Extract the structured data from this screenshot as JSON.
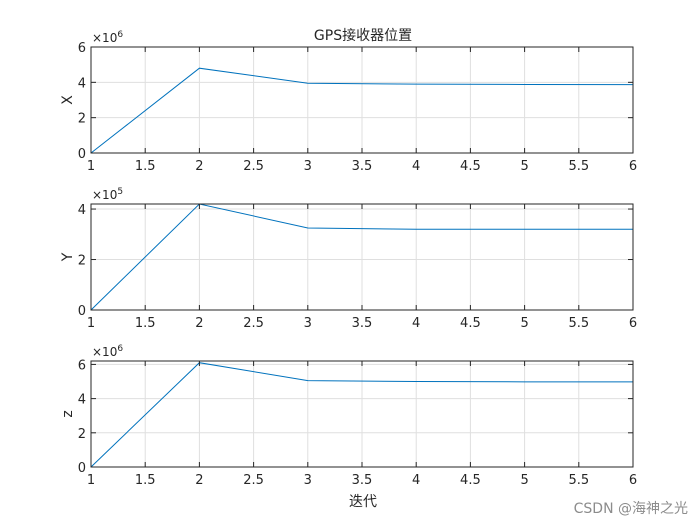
{
  "figure": {
    "title": "GPS接收器位置",
    "xlabel": "迭代",
    "watermark": "CSDN @海神之光"
  },
  "chart_data": [
    {
      "type": "line",
      "title": "GPS接收器位置",
      "xlabel": "",
      "ylabel": "X",
      "multiplier": "×10^6",
      "x": [
        1,
        2,
        3,
        4,
        5,
        6
      ],
      "series": [
        {
          "values": [
            0,
            4.8,
            3.95,
            3.9,
            3.88,
            3.87
          ],
          "color": "#0072BD"
        }
      ],
      "xlim": [
        1,
        6
      ],
      "ylim": [
        0,
        6
      ],
      "xticks": [
        1,
        1.5,
        2,
        2.5,
        3,
        3.5,
        4,
        4.5,
        5,
        5.5,
        6
      ],
      "yticks": [
        0,
        2,
        4,
        6
      ],
      "grid": true
    },
    {
      "type": "line",
      "title": "",
      "xlabel": "",
      "ylabel": "Y",
      "multiplier": "×10^5",
      "x": [
        1,
        2,
        3,
        4,
        5,
        6
      ],
      "series": [
        {
          "values": [
            0,
            4.2,
            3.25,
            3.2,
            3.2,
            3.2
          ],
          "color": "#0072BD"
        }
      ],
      "xlim": [
        1,
        6
      ],
      "ylim": [
        0,
        4.2
      ],
      "xticks": [
        1,
        1.5,
        2,
        2.5,
        3,
        3.5,
        4,
        4.5,
        5,
        5.5,
        6
      ],
      "yticks": [
        0,
        2,
        4
      ],
      "grid": true
    },
    {
      "type": "line",
      "title": "",
      "xlabel": "迭代",
      "ylabel": "z",
      "multiplier": "×10^6",
      "x": [
        1,
        2,
        3,
        4,
        5,
        6
      ],
      "series": [
        {
          "values": [
            0,
            6.1,
            5.05,
            5.0,
            4.98,
            4.98
          ],
          "color": "#0072BD"
        }
      ],
      "xlim": [
        1,
        6
      ],
      "ylim": [
        0,
        6.2
      ],
      "xticks": [
        1,
        1.5,
        2,
        2.5,
        3,
        3.5,
        4,
        4.5,
        5,
        5.5,
        6
      ],
      "yticks": [
        0,
        2,
        4,
        6
      ],
      "grid": true
    }
  ]
}
